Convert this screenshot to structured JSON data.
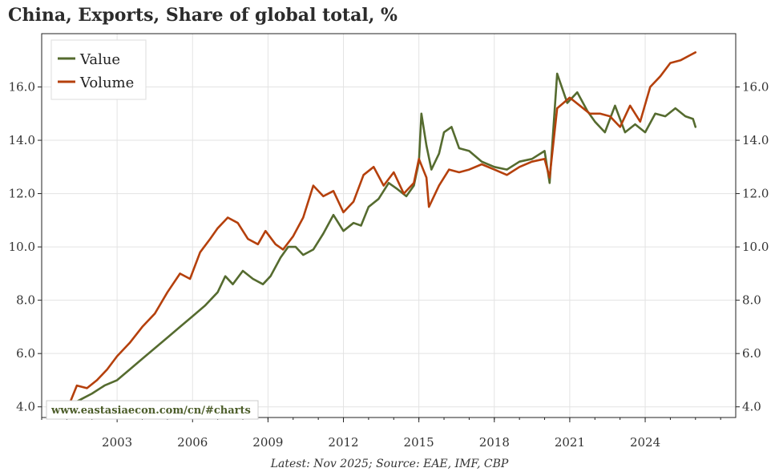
{
  "chart_data": {
    "type": "line",
    "title": "China, Exports, Share of global total, %",
    "xlabel": "",
    "ylabel": "",
    "xlim": [
      2000.0,
      2027.6
    ],
    "ylim": [
      3.6,
      18.0
    ],
    "x_ticks": [
      2003,
      2006,
      2009,
      2012,
      2015,
      2018,
      2021,
      2024
    ],
    "y_ticks": [
      "4.0",
      "6.0",
      "8.0",
      "10.0",
      "12.0",
      "14.0",
      "16.0"
    ],
    "grid": true,
    "legend_position": "top-left",
    "watermark": "www.eastasiaecon.com/cn/#charts",
    "source_note": "Latest: Nov 2025; Source: EAE, IMF, CBP",
    "series": [
      {
        "name": "Value",
        "color": "#556b2f",
        "points": [
          [
            2001.2,
            4.1
          ],
          [
            2001.6,
            4.3
          ],
          [
            2002.0,
            4.5
          ],
          [
            2002.5,
            4.8
          ],
          [
            2003.0,
            5.0
          ],
          [
            2003.5,
            5.4
          ],
          [
            2004.0,
            5.8
          ],
          [
            2004.5,
            6.2
          ],
          [
            2005.0,
            6.6
          ],
          [
            2005.5,
            7.0
          ],
          [
            2006.0,
            7.4
          ],
          [
            2006.5,
            7.8
          ],
          [
            2007.0,
            8.3
          ],
          [
            2007.3,
            8.9
          ],
          [
            2007.6,
            8.6
          ],
          [
            2008.0,
            9.1
          ],
          [
            2008.4,
            8.8
          ],
          [
            2008.8,
            8.6
          ],
          [
            2009.1,
            8.9
          ],
          [
            2009.5,
            9.6
          ],
          [
            2009.8,
            10.0
          ],
          [
            2010.1,
            10.0
          ],
          [
            2010.4,
            9.7
          ],
          [
            2010.8,
            9.9
          ],
          [
            2011.2,
            10.5
          ],
          [
            2011.6,
            11.2
          ],
          [
            2012.0,
            10.6
          ],
          [
            2012.4,
            10.9
          ],
          [
            2012.7,
            10.8
          ],
          [
            2013.0,
            11.5
          ],
          [
            2013.4,
            11.8
          ],
          [
            2013.8,
            12.4
          ],
          [
            2014.1,
            12.2
          ],
          [
            2014.5,
            11.9
          ],
          [
            2014.8,
            12.3
          ],
          [
            2015.0,
            13.2
          ],
          [
            2015.1,
            15.0
          ],
          [
            2015.3,
            13.8
          ],
          [
            2015.5,
            12.9
          ],
          [
            2015.8,
            13.5
          ],
          [
            2016.0,
            14.3
          ],
          [
            2016.3,
            14.5
          ],
          [
            2016.6,
            13.7
          ],
          [
            2017.0,
            13.6
          ],
          [
            2017.5,
            13.2
          ],
          [
            2018.0,
            13.0
          ],
          [
            2018.5,
            12.9
          ],
          [
            2019.0,
            13.2
          ],
          [
            2019.5,
            13.3
          ],
          [
            2020.0,
            13.6
          ],
          [
            2020.2,
            12.4
          ],
          [
            2020.5,
            16.5
          ],
          [
            2020.9,
            15.4
          ],
          [
            2021.3,
            15.8
          ],
          [
            2021.7,
            15.1
          ],
          [
            2022.0,
            14.7
          ],
          [
            2022.4,
            14.3
          ],
          [
            2022.8,
            15.3
          ],
          [
            2023.2,
            14.3
          ],
          [
            2023.6,
            14.6
          ],
          [
            2024.0,
            14.3
          ],
          [
            2024.4,
            15.0
          ],
          [
            2024.8,
            14.9
          ],
          [
            2025.2,
            15.2
          ],
          [
            2025.6,
            14.9
          ],
          [
            2025.9,
            14.8
          ],
          [
            2026.0,
            14.5
          ]
        ]
      },
      {
        "name": "Volume",
        "color": "#b5400c",
        "points": [
          [
            2001.1,
            4.1
          ],
          [
            2001.4,
            4.8
          ],
          [
            2001.8,
            4.7
          ],
          [
            2002.2,
            5.0
          ],
          [
            2002.6,
            5.4
          ],
          [
            2003.0,
            5.9
          ],
          [
            2003.5,
            6.4
          ],
          [
            2004.0,
            7.0
          ],
          [
            2004.5,
            7.5
          ],
          [
            2005.0,
            8.3
          ],
          [
            2005.5,
            9.0
          ],
          [
            2005.9,
            8.8
          ],
          [
            2006.3,
            9.8
          ],
          [
            2006.7,
            10.3
          ],
          [
            2007.0,
            10.7
          ],
          [
            2007.4,
            11.1
          ],
          [
            2007.8,
            10.9
          ],
          [
            2008.2,
            10.3
          ],
          [
            2008.6,
            10.1
          ],
          [
            2008.9,
            10.6
          ],
          [
            2009.3,
            10.1
          ],
          [
            2009.6,
            9.9
          ],
          [
            2010.0,
            10.4
          ],
          [
            2010.4,
            11.1
          ],
          [
            2010.8,
            12.3
          ],
          [
            2011.2,
            11.9
          ],
          [
            2011.6,
            12.1
          ],
          [
            2012.0,
            11.3
          ],
          [
            2012.4,
            11.7
          ],
          [
            2012.8,
            12.7
          ],
          [
            2013.2,
            13.0
          ],
          [
            2013.6,
            12.3
          ],
          [
            2014.0,
            12.8
          ],
          [
            2014.4,
            12.0
          ],
          [
            2014.8,
            12.4
          ],
          [
            2015.0,
            13.3
          ],
          [
            2015.3,
            12.6
          ],
          [
            2015.4,
            11.5
          ],
          [
            2015.8,
            12.3
          ],
          [
            2016.2,
            12.9
          ],
          [
            2016.6,
            12.8
          ],
          [
            2017.0,
            12.9
          ],
          [
            2017.5,
            13.1
          ],
          [
            2018.0,
            12.9
          ],
          [
            2018.5,
            12.7
          ],
          [
            2019.0,
            13.0
          ],
          [
            2019.5,
            13.2
          ],
          [
            2020.0,
            13.3
          ],
          [
            2020.2,
            12.6
          ],
          [
            2020.5,
            15.2
          ],
          [
            2021.0,
            15.6
          ],
          [
            2021.4,
            15.3
          ],
          [
            2021.8,
            15.0
          ],
          [
            2022.2,
            15.0
          ],
          [
            2022.6,
            14.9
          ],
          [
            2023.0,
            14.5
          ],
          [
            2023.4,
            15.3
          ],
          [
            2023.8,
            14.7
          ],
          [
            2024.2,
            16.0
          ],
          [
            2024.6,
            16.4
          ],
          [
            2025.0,
            16.9
          ],
          [
            2025.4,
            17.0
          ],
          [
            2025.8,
            17.2
          ],
          [
            2026.0,
            17.3
          ]
        ]
      }
    ]
  }
}
